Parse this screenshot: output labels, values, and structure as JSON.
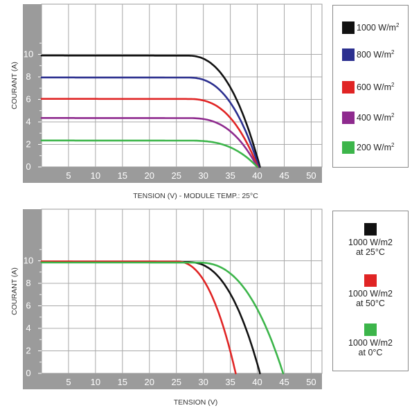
{
  "chart_data": [
    {
      "type": "line",
      "xlabel": "TENSION (V) - MODULE TEMP.: 25°C",
      "ylabel": "COURANT (A)",
      "xlim": [
        0,
        52
      ],
      "ylim": [
        0,
        12
      ],
      "x_ticks": [
        "5",
        "10",
        "15",
        "20",
        "25",
        "30",
        "35",
        "40",
        "45",
        "50"
      ],
      "y_ticks": [
        "0",
        "2",
        "4",
        "6",
        "8",
        "10"
      ],
      "grid": true,
      "legend_position": "right",
      "series": [
        {
          "name": "1000 W/m²",
          "label_main": "1000 W/m",
          "label_sup": "2",
          "color": "#111111",
          "isc": 9.9,
          "voc": 40.5,
          "knee": 27,
          "curv": 2.4
        },
        {
          "name": "800 W/m²",
          "label_main": "800 W/m",
          "label_sup": "2",
          "color": "#2b2f8f",
          "isc": 7.95,
          "voc": 40.3,
          "knee": 27,
          "curv": 2.5
        },
        {
          "name": "600 W/m²",
          "label_main": "600 W/m",
          "label_sup": "2",
          "color": "#e02424",
          "isc": 6.05,
          "voc": 40.1,
          "knee": 27,
          "curv": 2.6
        },
        {
          "name": "400 W/m²",
          "label_main": "400 W/m",
          "label_sup": "2",
          "color": "#8e2a8e",
          "isc": 4.35,
          "voc": 40.0,
          "knee": 27,
          "curv": 2.7
        },
        {
          "name": "200 W/m²",
          "label_main": "200 W/m",
          "label_sup": "2",
          "color": "#3cb54a",
          "isc": 2.35,
          "voc": 40.0,
          "knee": 27,
          "curv": 2.8
        }
      ]
    },
    {
      "type": "line",
      "xlabel": "TENSION (V)",
      "ylabel": "COURANT (A)",
      "xlim": [
        0,
        52
      ],
      "ylim": [
        0,
        12
      ],
      "x_ticks": [
        "5",
        "10",
        "15",
        "20",
        "25",
        "30",
        "35",
        "40",
        "45",
        "50"
      ],
      "y_ticks": [
        "0",
        "2",
        "4",
        "6",
        "8",
        "10"
      ],
      "grid": true,
      "legend_position": "right",
      "series": [
        {
          "name": "1000 W/m2 at 25°C",
          "line1": "1000 W/m2",
          "line2": "at 25°C",
          "color": "#111111",
          "isc": 9.9,
          "voc": 40.5,
          "knee": 27,
          "curv": 2.4
        },
        {
          "name": "1000 W/m2 at 50°C",
          "line1": "1000 W/m2",
          "line2": "at 50°C",
          "color": "#e02424",
          "isc": 9.95,
          "voc": 36.0,
          "knee": 25,
          "curv": 2.3
        },
        {
          "name": "1000 W/m2 at 0°C",
          "line1": "1000 W/m2",
          "line2": "at 0°C",
          "color": "#3cb54a",
          "isc": 9.85,
          "voc": 44.8,
          "knee": 29,
          "curv": 2.4
        }
      ]
    }
  ]
}
